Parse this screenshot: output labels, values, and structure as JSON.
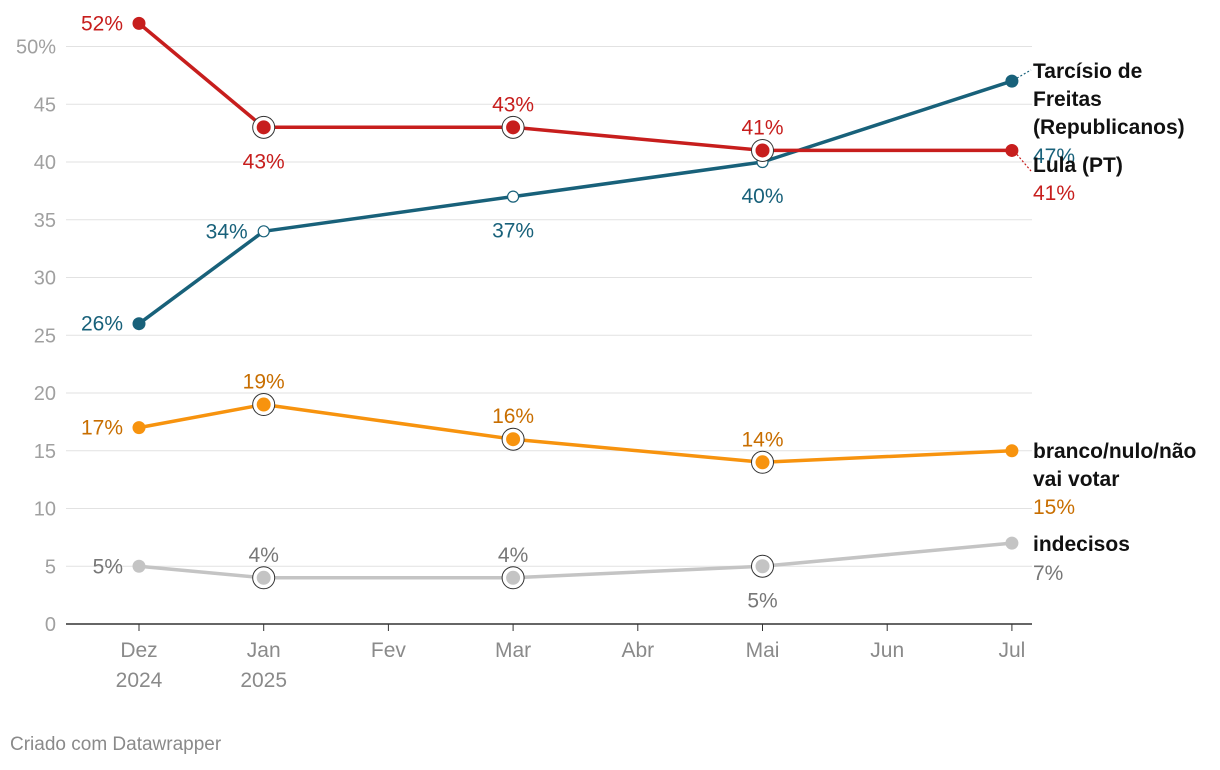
{
  "chart_data": {
    "type": "line",
    "x_ticks": [
      {
        "month": 0,
        "label": "Dez",
        "sublabel": "2024"
      },
      {
        "month": 1,
        "label": "Jan",
        "sublabel": "2025"
      },
      {
        "month": 2,
        "label": "Fev",
        "sublabel": ""
      },
      {
        "month": 3,
        "label": "Mar",
        "sublabel": ""
      },
      {
        "month": 4,
        "label": "Abr",
        "sublabel": ""
      },
      {
        "month": 5,
        "label": "Mai",
        "sublabel": ""
      },
      {
        "month": 6,
        "label": "Jun",
        "sublabel": ""
      },
      {
        "month": 7,
        "label": "Jul",
        "sublabel": ""
      }
    ],
    "y_ticks": [
      {
        "value": 0,
        "label": "0"
      },
      {
        "value": 5,
        "label": "5"
      },
      {
        "value": 10,
        "label": "10"
      },
      {
        "value": 15,
        "label": "15"
      },
      {
        "value": 20,
        "label": "20"
      },
      {
        "value": 25,
        "label": "25"
      },
      {
        "value": 30,
        "label": "30"
      },
      {
        "value": 35,
        "label": "35"
      },
      {
        "value": 40,
        "label": "40"
      },
      {
        "value": 45,
        "label": "45"
      },
      {
        "value": 50,
        "label": "50%"
      }
    ],
    "ylim": [
      0,
      52
    ],
    "grid": true,
    "series": [
      {
        "key": "lula",
        "name": "Lula (PT)",
        "color": "#c71e1d",
        "points": [
          {
            "month": 0,
            "value": 52,
            "label": "52%",
            "pos": "left"
          },
          {
            "month": 1,
            "value": 43,
            "label": "43%",
            "pos": "below"
          },
          {
            "month": 3,
            "value": 43,
            "label": "43%",
            "pos": "above"
          },
          {
            "month": 5,
            "value": 41,
            "label": "41%",
            "pos": "above"
          },
          {
            "month": 7,
            "value": 41,
            "label": "41%",
            "pos": "end"
          }
        ]
      },
      {
        "key": "tarcisio",
        "name": "Tarcísio de Freitas (Republicanos)",
        "name_lines": [
          "Tarcísio de",
          "Freitas",
          "(Republicanos)"
        ],
        "color": "#18617a",
        "points": [
          {
            "month": 0,
            "value": 26,
            "label": "26%",
            "pos": "left"
          },
          {
            "month": 1,
            "value": 34,
            "label": "34%",
            "pos": "left"
          },
          {
            "month": 3,
            "value": 37,
            "label": "37%",
            "pos": "below"
          },
          {
            "month": 5,
            "value": 40,
            "label": "40%",
            "pos": "below"
          },
          {
            "month": 7,
            "value": 47,
            "label": "47%",
            "pos": "end"
          }
        ]
      },
      {
        "key": "branco",
        "name": "branco/nulo/não vai votar",
        "name_lines": [
          "branco/nulo/não",
          "vai votar"
        ],
        "color": "#f7930e",
        "label_color": "#c86e00",
        "points": [
          {
            "month": 0,
            "value": 17,
            "label": "17%",
            "pos": "left"
          },
          {
            "month": 1,
            "value": 19,
            "label": "19%",
            "pos": "above"
          },
          {
            "month": 3,
            "value": 16,
            "label": "16%",
            "pos": "above"
          },
          {
            "month": 5,
            "value": 14,
            "label": "14%",
            "pos": "above"
          },
          {
            "month": 7,
            "value": 15,
            "label": "15%",
            "pos": "end"
          }
        ]
      },
      {
        "key": "indecisos",
        "name": "indecisos",
        "name_lines": [
          "indecisos"
        ],
        "color": "#c4c4c4",
        "label_color": "#777777",
        "points": [
          {
            "month": 0,
            "value": 5,
            "label": "5%",
            "pos": "left"
          },
          {
            "month": 1,
            "value": 4,
            "label": "4%",
            "pos": "above"
          },
          {
            "month": 3,
            "value": 4,
            "label": "4%",
            "pos": "above"
          },
          {
            "month": 5,
            "value": 5,
            "label": "5%",
            "pos": "below"
          },
          {
            "month": 7,
            "value": 7,
            "label": "7%",
            "pos": "end"
          }
        ]
      }
    ]
  },
  "footer": {
    "credit": "Criado com Datawrapper"
  }
}
